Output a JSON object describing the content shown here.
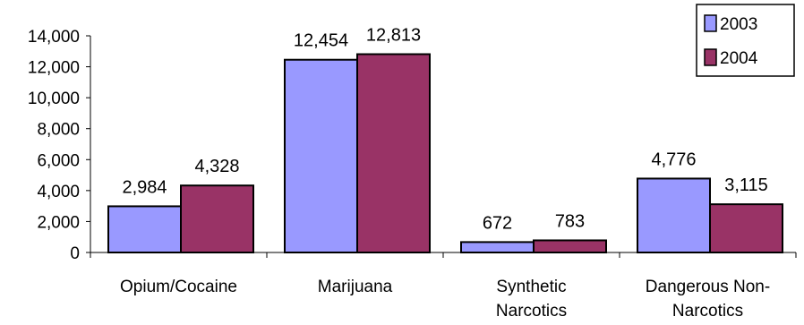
{
  "chart_data": {
    "type": "bar",
    "categories": [
      [
        "Opium/Cocaine"
      ],
      [
        "Marijuana"
      ],
      [
        "Synthetic",
        "Narcotics"
      ],
      [
        "Dangerous Non-",
        "Narcotics"
      ]
    ],
    "series": [
      {
        "name": "2003",
        "color": "#9999ff",
        "values": [
          2984,
          12454,
          672,
          4776
        ],
        "labels": [
          "2,984",
          "12,454",
          "672",
          "4,776"
        ]
      },
      {
        "name": "2004",
        "color": "#993366",
        "values": [
          4328,
          12813,
          783,
          3115
        ],
        "labels": [
          "4,328",
          "12,813",
          "783",
          "3,115"
        ]
      }
    ],
    "ylim": [
      0,
      14000
    ],
    "yticks": [
      0,
      2000,
      4000,
      6000,
      8000,
      10000,
      12000,
      14000
    ],
    "ytick_labels": [
      "0",
      "2,000",
      "4,000",
      "6,000",
      "8,000",
      "10,000",
      "12,000",
      "14,000"
    ],
    "grid": false,
    "legend": "top-right",
    "title": "",
    "xlabel": "",
    "ylabel": ""
  }
}
